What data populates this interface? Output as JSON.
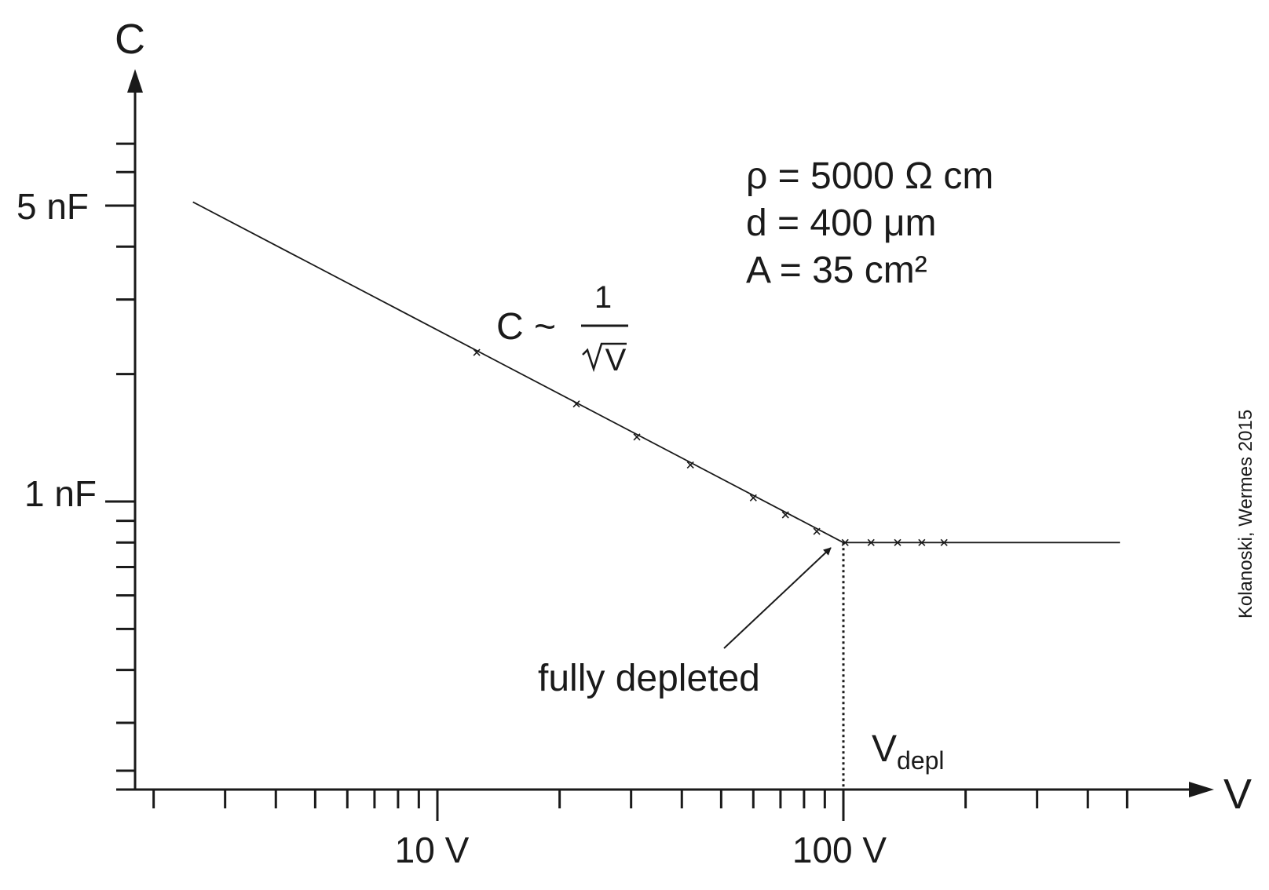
{
  "chart_data": {
    "type": "line",
    "title": "",
    "xlabel": "V",
    "ylabel": "C",
    "x_scale": "log",
    "y_scale": "log",
    "xlim": [
      2.0,
      500
    ],
    "ylim": [
      0.2,
      7.0
    ],
    "x_ticks": [
      {
        "value": 10,
        "label": "10 V"
      },
      {
        "value": 100,
        "label": "100 V"
      }
    ],
    "y_ticks": [
      {
        "value": 1,
        "label": "1 nF"
      },
      {
        "value": 5,
        "label": "5 nF"
      }
    ],
    "x_unit": "V",
    "y_unit": "nF",
    "series": [
      {
        "line": [
          [
            2.5,
            5.1
          ],
          [
            100,
            0.8
          ],
          [
            480,
            0.8
          ]
        ],
        "markers": [
          [
            12.5,
            2.25
          ],
          [
            22,
            1.7
          ],
          [
            31,
            1.42
          ],
          [
            42,
            1.22
          ],
          [
            60,
            1.02
          ],
          [
            72,
            0.93
          ],
          [
            86,
            0.85
          ],
          [
            101,
            0.8
          ],
          [
            117,
            0.8
          ],
          [
            136,
            0.8
          ],
          [
            156,
            0.8
          ],
          [
            177,
            0.8
          ]
        ]
      }
    ],
    "annotations": {
      "params": [
        "ρ = 5000 Ω cm",
        "d = 400 μm",
        "A = 35 cm²"
      ],
      "formula": {
        "lhs": "C ~",
        "numerator": "1",
        "denominator": "V"
      },
      "depletion_label": "fully depleted",
      "vdepl": {
        "main": "V",
        "sub": "depl",
        "x": 100
      },
      "credit": "Kolanoski, Wermes 2015"
    },
    "grid": false,
    "legend": "none"
  }
}
